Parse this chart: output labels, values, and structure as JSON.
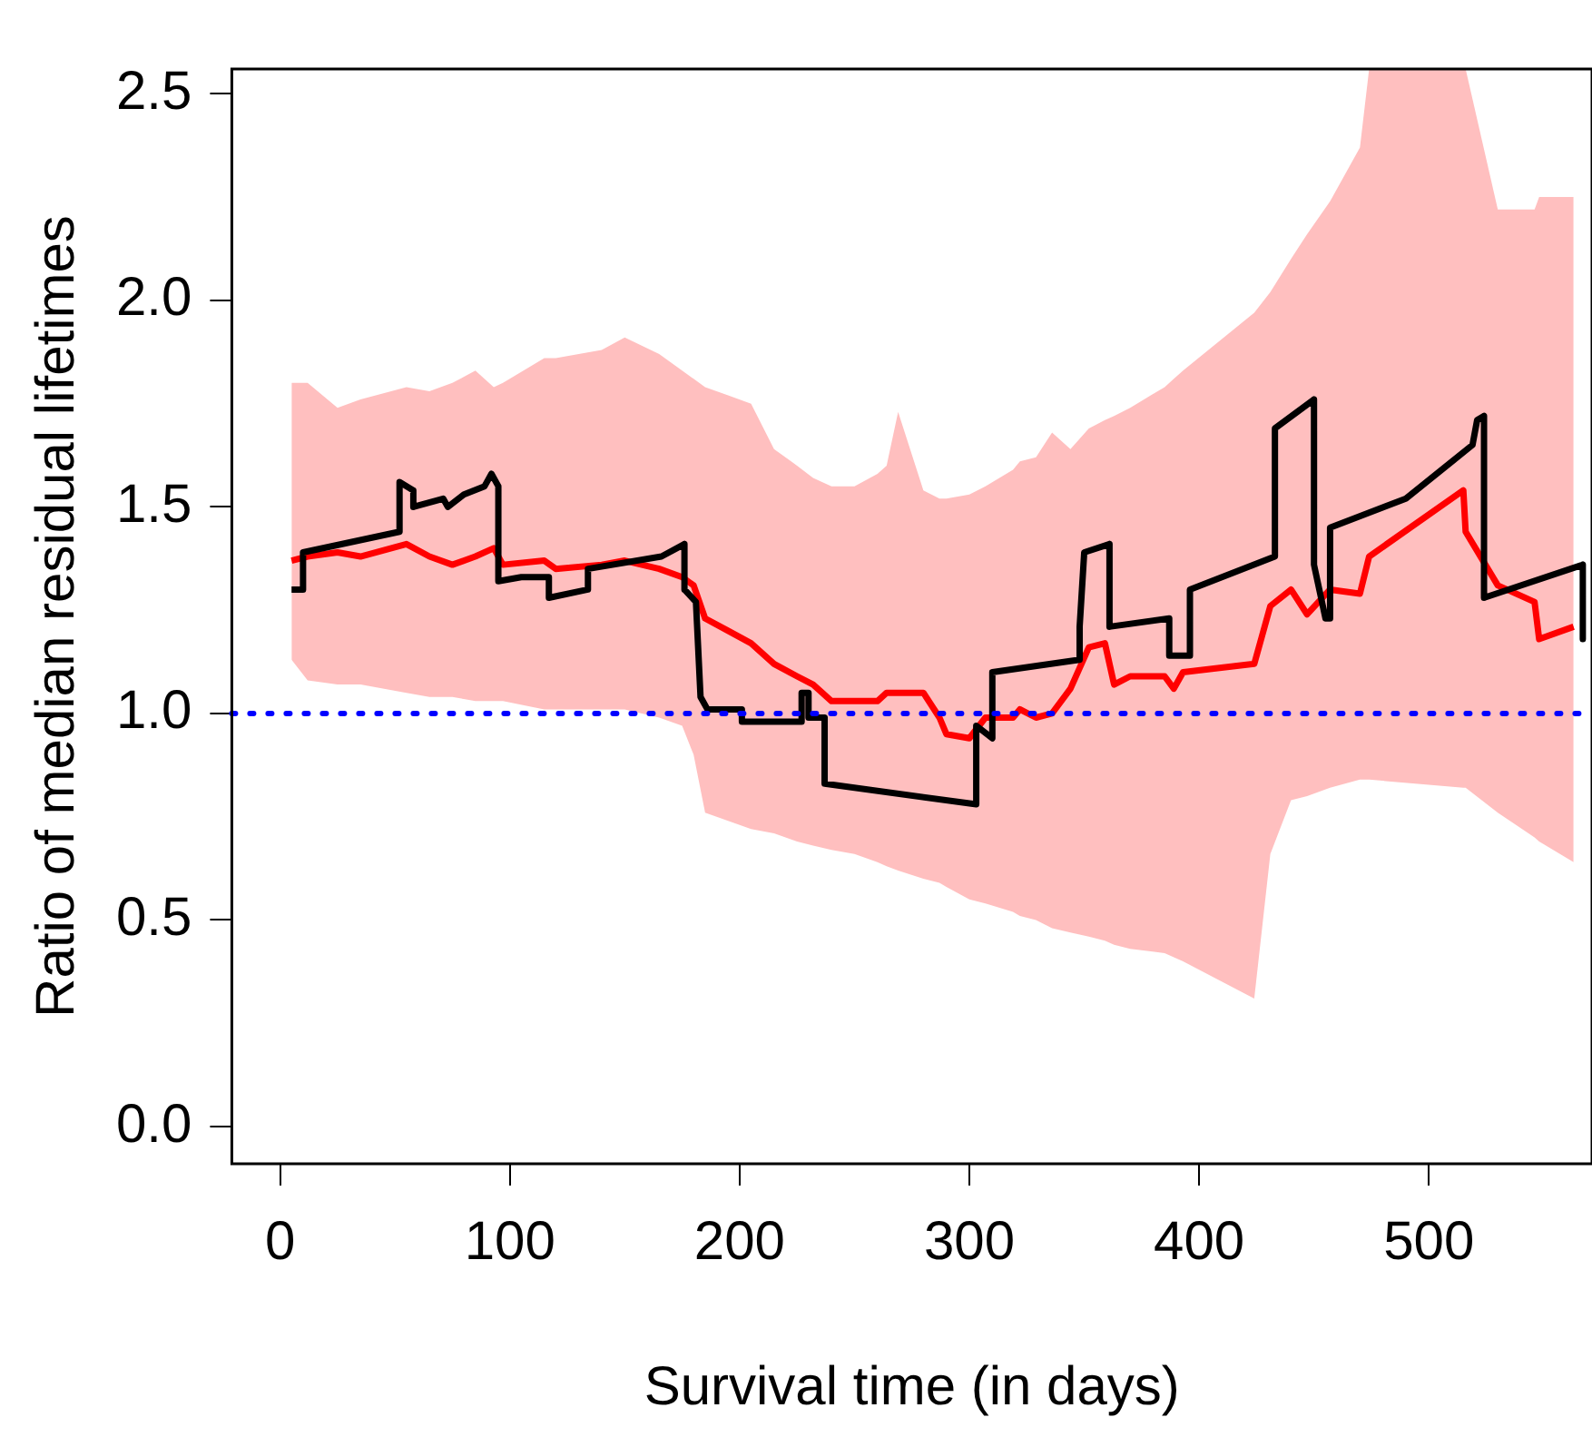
{
  "chart_data": {
    "type": "line",
    "xlabel": "Survival time (in days)",
    "ylabel": "Ratio of median residual lifetimes",
    "xlim": [
      -21,
      571
    ],
    "xticks": [
      0,
      100,
      200,
      300,
      400,
      500
    ],
    "ylim": [
      -0.09,
      2.56
    ],
    "yticks": [
      {
        "value": 0,
        "label": "0.0"
      },
      0.5,
      {
        "value": 1,
        "label": "1.0"
      },
      1.5,
      {
        "value": 2,
        "label": "2.0"
      },
      2.5
    ],
    "grid": false,
    "legend": false,
    "marker": "none",
    "line_style": "solid",
    "ref_lines": [
      {
        "axis": "y",
        "value": 1,
        "color": "#0000ff",
        "line_style": "dotted"
      }
    ],
    "series": [
      {
        "color": "#ff0000",
        "x": [
          5,
          12,
          25,
          35,
          55,
          65,
          75,
          85,
          93,
          97,
          115,
          120,
          140,
          150,
          165,
          175,
          180,
          185,
          195,
          205,
          215,
          225,
          232,
          240,
          250,
          260,
          264,
          269,
          280,
          287,
          290,
          300,
          307,
          319,
          322,
          329,
          336,
          344,
          352,
          359,
          363,
          370,
          385,
          389,
          393,
          424,
          431,
          440,
          447,
          457,
          470,
          474,
          515,
          516,
          530,
          546,
          548,
          563
        ],
        "values": [
          1.37,
          1.38,
          1.39,
          1.38,
          1.41,
          1.38,
          1.36,
          1.38,
          1.4,
          1.36,
          1.37,
          1.35,
          1.36,
          1.37,
          1.35,
          1.33,
          1.31,
          1.23,
          1.2,
          1.17,
          1.12,
          1.09,
          1.07,
          1.03,
          1.03,
          1.03,
          1.05,
          1.05,
          1.05,
          0.99,
          0.95,
          0.94,
          0.99,
          0.99,
          1.01,
          0.99,
          1.0,
          1.06,
          1.16,
          1.17,
          1.07,
          1.09,
          1.09,
          1.06,
          1.1,
          1.12,
          1.26,
          1.3,
          1.24,
          1.3,
          1.29,
          1.38,
          1.54,
          1.44,
          1.31,
          1.27,
          1.18,
          1.21
        ],
        "upper": [
          1.8,
          1.8,
          1.74,
          1.76,
          1.79,
          1.78,
          1.8,
          1.83,
          1.79,
          1.8,
          1.86,
          1.86,
          1.88,
          1.91,
          1.87,
          1.83,
          1.81,
          1.79,
          1.77,
          1.75,
          1.64,
          1.6,
          1.57,
          1.55,
          1.55,
          1.58,
          1.6,
          1.73,
          1.54,
          1.52,
          1.52,
          1.53,
          1.55,
          1.59,
          1.61,
          1.62,
          1.68,
          1.64,
          1.69,
          1.71,
          1.72,
          1.74,
          1.79,
          1.81,
          1.83,
          1.97,
          2.02,
          2.1,
          2.16,
          2.24,
          2.37,
          2.56,
          2.56,
          2.56,
          2.22,
          2.22,
          2.25,
          2.25
        ],
        "lower": [
          1.13,
          1.08,
          1.07,
          1.07,
          1.05,
          1.04,
          1.04,
          1.03,
          1.03,
          1.03,
          1.01,
          1.01,
          1.01,
          1.01,
          0.99,
          0.97,
          0.9,
          0.76,
          0.74,
          0.72,
          0.71,
          0.69,
          0.68,
          0.67,
          0.66,
          0.64,
          0.63,
          0.62,
          0.6,
          0.59,
          0.58,
          0.55,
          0.54,
          0.52,
          0.51,
          0.5,
          0.48,
          0.47,
          0.46,
          0.45,
          0.44,
          0.43,
          0.42,
          0.41,
          0.4,
          0.31,
          0.66,
          0.79,
          0.8,
          0.82,
          0.84,
          0.84,
          0.82,
          0.82,
          0.76,
          0.7,
          0.69,
          0.64
        ]
      },
      {
        "color": "#000000",
        "x": [
          5,
          10,
          10,
          52,
          52,
          58,
          58,
          71,
          73,
          80,
          89,
          92,
          95,
          95,
          105,
          117,
          117,
          134,
          134,
          166,
          176,
          176,
          181,
          183,
          186,
          201,
          201,
          227,
          227,
          230,
          230,
          237,
          237,
          303,
          303,
          310,
          310,
          348,
          348,
          350,
          361,
          361,
          387,
          387,
          396,
          396,
          433,
          433,
          450,
          450,
          455,
          457,
          457,
          490,
          519,
          521,
          524,
          524,
          567,
          567
        ],
        "values": [
          1.3,
          1.3,
          1.39,
          1.44,
          1.56,
          1.54,
          1.5,
          1.52,
          1.5,
          1.53,
          1.55,
          1.58,
          1.55,
          1.32,
          1.33,
          1.33,
          1.28,
          1.3,
          1.35,
          1.38,
          1.41,
          1.3,
          1.27,
          1.04,
          1.01,
          1.01,
          0.98,
          0.98,
          1.05,
          1.05,
          0.99,
          0.99,
          0.83,
          0.78,
          0.97,
          0.94,
          1.1,
          1.13,
          1.21,
          1.39,
          1.41,
          1.21,
          1.23,
          1.14,
          1.14,
          1.3,
          1.38,
          1.69,
          1.76,
          1.36,
          1.23,
          1.23,
          1.45,
          1.52,
          1.65,
          1.71,
          1.72,
          1.28,
          1.36,
          1.18
        ]
      }
    ]
  }
}
